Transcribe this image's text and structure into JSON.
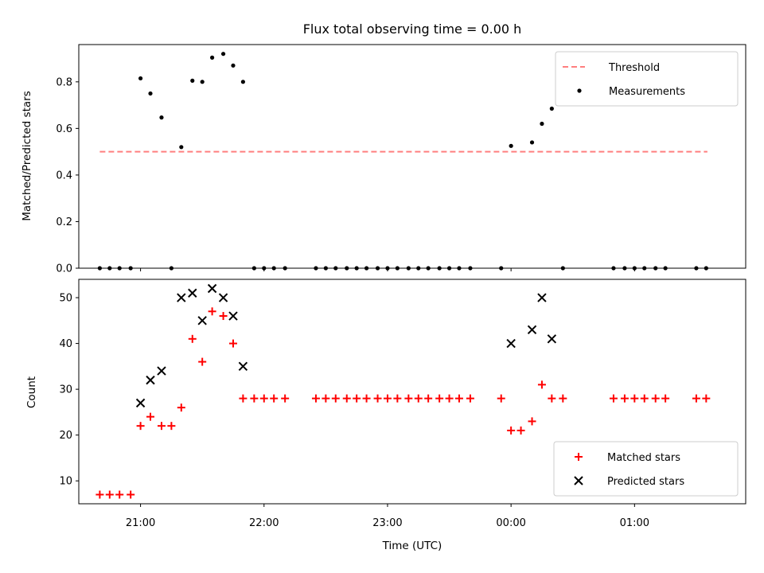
{
  "chart_data": [
    {
      "type": "scatter",
      "title": "Flux total observing time = 0.00 h",
      "xlabel": "",
      "ylabel": "Matched/Predicted stars",
      "ylim": [
        0,
        0.96
      ],
      "yticks": [
        "0.0",
        "0.2",
        "0.4",
        "0.6",
        "0.8"
      ],
      "xlim_hours": [
        20.5,
        25.9
      ],
      "threshold": {
        "name": "Threshold",
        "value": 0.5,
        "x": [
          20.67,
          25.59
        ],
        "color": "#ff7f7f"
      },
      "series": [
        {
          "name": "Measurements",
          "color": "#000000",
          "x": [
            20.67,
            20.75,
            20.83,
            20.92,
            21.0,
            21.08,
            21.17,
            21.25,
            21.33,
            21.42,
            21.5,
            21.58,
            21.67,
            21.75,
            21.83,
            21.92,
            22.0,
            22.08,
            22.17,
            22.42,
            22.5,
            22.58,
            22.67,
            22.75,
            22.83,
            22.92,
            23.0,
            23.08,
            23.17,
            23.25,
            23.33,
            23.42,
            23.5,
            23.58,
            23.67,
            23.92,
            24.0,
            24.17,
            24.25,
            24.33,
            24.42,
            24.83,
            24.92,
            25.0,
            25.08,
            25.17,
            25.25,
            25.5,
            25.58
          ],
          "y": [
            0,
            0,
            0,
            0,
            0.815,
            0.75,
            0.647,
            0,
            0.52,
            0.805,
            0.8,
            0.904,
            0.92,
            0.87,
            0.8,
            0,
            0,
            0,
            0,
            0,
            0,
            0,
            0,
            0,
            0,
            0,
            0,
            0,
            0,
            0,
            0,
            0,
            0,
            0,
            0,
            0,
            0.525,
            0.54,
            0.62,
            0.685,
            0,
            0,
            0,
            0,
            0,
            0,
            0,
            0,
            0
          ]
        }
      ],
      "legend_placement": "upper right"
    },
    {
      "type": "scatter",
      "title": "",
      "xlabel": "Time (UTC)",
      "ylabel": "Count",
      "ylim": [
        5,
        54
      ],
      "yticks": [
        "10",
        "20",
        "30",
        "40",
        "50"
      ],
      "xticks": [
        "21:00",
        "22:00",
        "23:00",
        "00:00",
        "01:00"
      ],
      "series": [
        {
          "name": "Matched stars",
          "color": "#ff0000",
          "marker": "+",
          "x": [
            20.67,
            20.75,
            20.83,
            20.92,
            21.0,
            21.08,
            21.17,
            21.25,
            21.33,
            21.42,
            21.5,
            21.58,
            21.67,
            21.75,
            21.83,
            21.92,
            22.0,
            22.08,
            22.17,
            22.42,
            22.5,
            22.58,
            22.67,
            22.75,
            22.83,
            22.92,
            23.0,
            23.08,
            23.17,
            23.25,
            23.33,
            23.42,
            23.5,
            23.58,
            23.67,
            23.92,
            24.0,
            24.08,
            24.17,
            24.25,
            24.33,
            24.42,
            24.83,
            24.92,
            25.0,
            25.08,
            25.17,
            25.25,
            25.5,
            25.58
          ],
          "y": [
            7,
            7,
            7,
            7,
            22,
            24,
            22,
            22,
            26,
            41,
            36,
            47,
            46,
            40,
            28,
            28,
            28,
            28,
            28,
            28,
            28,
            28,
            28,
            28,
            28,
            28,
            28,
            28,
            28,
            28,
            28,
            28,
            28,
            28,
            28,
            28,
            21,
            21,
            23,
            31,
            28,
            28,
            28,
            28,
            28,
            28,
            28,
            28,
            28,
            28
          ]
        },
        {
          "name": "Predicted stars",
          "color": "#000000",
          "marker": "x",
          "x": [
            21.0,
            21.08,
            21.17,
            21.33,
            21.42,
            21.5,
            21.58,
            21.67,
            21.75,
            21.83,
            24.0,
            24.17,
            24.25,
            24.33
          ],
          "y": [
            27,
            32,
            34,
            50,
            51,
            45,
            52,
            50,
            46,
            35,
            40,
            43,
            50,
            41
          ]
        }
      ],
      "legend_placement": "lower right"
    }
  ]
}
